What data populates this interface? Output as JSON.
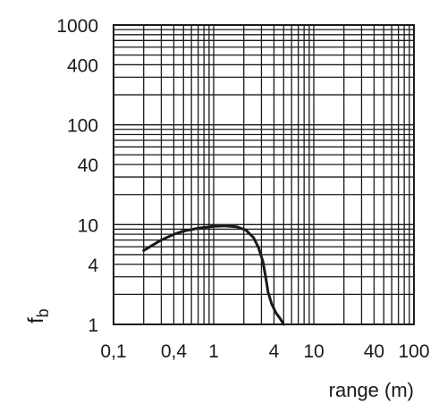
{
  "chart_data": {
    "type": "line",
    "title": "",
    "xlabel": "range (m)",
    "ylabel_main": "f",
    "ylabel_sub": "b",
    "xscale": "log",
    "yscale": "log",
    "xlim": [
      0.1,
      100
    ],
    "ylim": [
      1,
      1000
    ],
    "grid": true,
    "legend": "none",
    "x_ticks": [
      0.1,
      0.4,
      1,
      4,
      10,
      40,
      100
    ],
    "x_tick_labels": [
      "0,1",
      "0,4",
      "1",
      "4",
      "10",
      "40",
      "100"
    ],
    "y_ticks": [
      1,
      4,
      10,
      40,
      100,
      400,
      1000
    ],
    "y_tick_labels": [
      "1",
      "4",
      "10",
      "40",
      "100",
      "400",
      "1000"
    ],
    "x_grid": [
      0.1,
      0.2,
      0.3,
      0.4,
      0.5,
      0.6,
      0.7,
      0.8,
      0.9,
      1,
      2,
      3,
      4,
      5,
      6,
      7,
      8,
      9,
      10,
      20,
      30,
      40,
      50,
      60,
      70,
      80,
      90,
      100
    ],
    "y_grid": [
      1,
      2,
      3,
      4,
      5,
      6,
      7,
      8,
      9,
      10,
      20,
      30,
      40,
      50,
      60,
      70,
      80,
      90,
      100,
      200,
      300,
      400,
      500,
      600,
      700,
      800,
      900,
      1000
    ],
    "series": [
      {
        "color": "#1a1a1a",
        "x": [
          0.2,
          0.3,
          0.4,
          0.5,
          0.7,
          1.0,
          1.3,
          1.7,
          2.1,
          2.5,
          2.8,
          3.1,
          3.3,
          3.5,
          3.8,
          4.2,
          4.6,
          5.0
        ],
        "y": [
          5.5,
          7.0,
          8.0,
          8.6,
          9.2,
          9.6,
          9.7,
          9.5,
          8.8,
          7.4,
          5.9,
          4.3,
          3.0,
          2.1,
          1.6,
          1.3,
          1.15,
          1.0
        ]
      }
    ]
  }
}
